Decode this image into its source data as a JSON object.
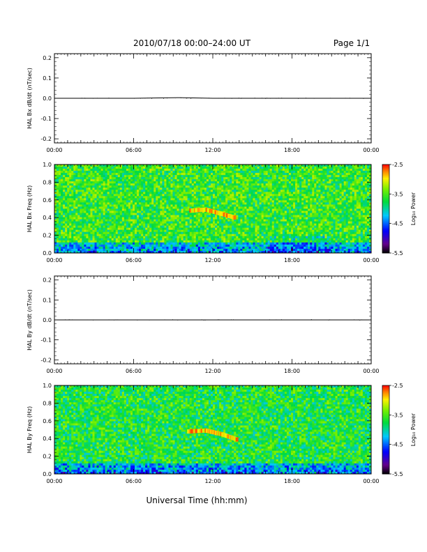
{
  "header": {
    "title": "2010/07/18   00:00–24:00 UT",
    "page": "Page 1/1"
  },
  "footer": {
    "xlabel": "Universal Time (hh:mm)"
  },
  "colorbar": {
    "label": "Log₁₀ Power",
    "ticks": [
      "-2.5",
      "-3.5",
      "-4.5",
      "-5.5"
    ],
    "range": [
      -5.5,
      -2.5
    ]
  },
  "chart_data": [
    {
      "type": "line",
      "title": "",
      "xlabel": "",
      "ylabel": "HAL Bx dB/dt (nT/sec)",
      "xlim": [
        "00:00",
        "24:00"
      ],
      "ylim": [
        -0.22,
        0.22
      ],
      "x_ticks": [
        "00:00",
        "06:00",
        "12:00",
        "18:00",
        "00:00"
      ],
      "y_ticks": [
        "0.2",
        "0.1",
        "0.0",
        "-0.1",
        "-0.2"
      ],
      "series": [
        {
          "name": "",
          "x": [
            "00:00",
            "06:00",
            "09:30",
            "12:00",
            "18:00",
            "24:00"
          ],
          "values": [
            0.0,
            0.0,
            0.003,
            0.0,
            0.0,
            0.0
          ]
        }
      ]
    },
    {
      "type": "heatmap",
      "title": "",
      "ylabel": "HAL Bx Freq (Hz)",
      "xlim": [
        "00:00",
        "24:00"
      ],
      "ylim": [
        0.0,
        1.0
      ],
      "x_ticks": [
        "00:00",
        "06:00",
        "12:00",
        "18:00",
        "00:00"
      ],
      "y_ticks": [
        "1.0",
        "0.8",
        "0.6",
        "0.4",
        "0.2",
        "0.0"
      ],
      "background_level": -3.6,
      "features": [
        {
          "name": "",
          "x": [
            "10:20",
            "11:30",
            "12:30",
            "13:40"
          ],
          "freq": [
            0.48,
            0.49,
            0.45,
            0.4
          ],
          "level": -2.6
        }
      ]
    },
    {
      "type": "line",
      "title": "",
      "ylabel": "HAL By dB/dt (nT/sec)",
      "xlim": [
        "00:00",
        "24:00"
      ],
      "ylim": [
        -0.22,
        0.22
      ],
      "x_ticks": [
        "00:00",
        "06:00",
        "12:00",
        "18:00",
        "00:00"
      ],
      "y_ticks": [
        "0.2",
        "0.1",
        "0.0",
        "-0.1",
        "-0.2"
      ],
      "series": [
        {
          "name": "",
          "x": [
            "00:00",
            "06:00",
            "12:00",
            "18:00",
            "24:00"
          ],
          "values": [
            0.0,
            0.0,
            0.0,
            0.0,
            0.0
          ]
        }
      ]
    },
    {
      "type": "heatmap",
      "title": "",
      "ylabel": "HAL By Freq (Hz)",
      "xlim": [
        "00:00",
        "24:00"
      ],
      "ylim": [
        0.0,
        1.0
      ],
      "x_ticks": [
        "00:00",
        "06:00",
        "12:00",
        "18:00",
        "00:00"
      ],
      "y_ticks": [
        "1.0",
        "0.8",
        "0.6",
        "0.4",
        "0.2",
        "0.0"
      ],
      "background_level": -3.7,
      "features": [
        {
          "name": "",
          "x": [
            "10:10",
            "11:30",
            "12:40",
            "13:50"
          ],
          "freq": [
            0.48,
            0.49,
            0.45,
            0.39
          ],
          "level": -2.6
        }
      ]
    }
  ]
}
